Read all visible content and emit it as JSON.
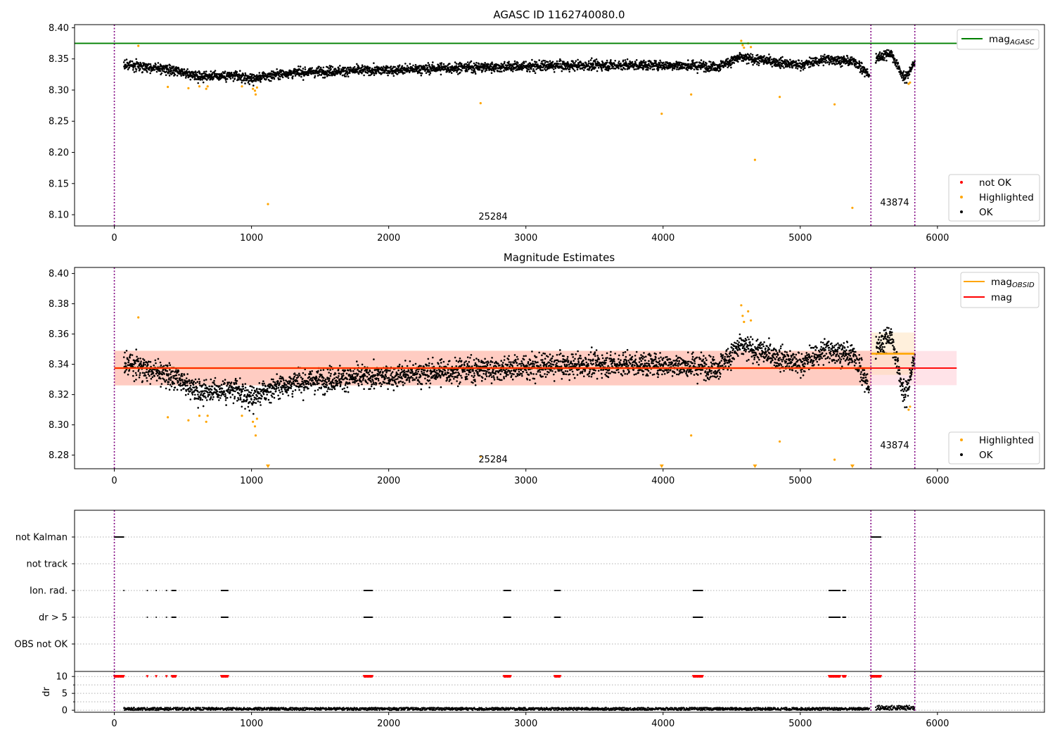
{
  "chart_data": [
    {
      "type": "scatter",
      "title": "AGASC ID 1162740080.0",
      "xlabel": "",
      "ylabel": "",
      "xlim": [
        -290,
        6780
      ],
      "ylim": [
        8.082,
        8.405
      ],
      "xticks": [
        0,
        1000,
        2000,
        3000,
        4000,
        5000,
        6000
      ],
      "xtick_labels": [
        "0",
        "1000",
        "2000",
        "3000",
        "4000",
        "5000",
        "6000"
      ],
      "yticks": [
        8.1,
        8.15,
        8.2,
        8.25,
        8.3,
        8.35,
        8.4
      ],
      "ytick_labels": [
        "8.10",
        "8.15",
        "8.20",
        "8.25",
        "8.30",
        "8.35",
        "8.40"
      ],
      "obsid_boundaries": [
        0,
        5515,
        5835
      ],
      "obsid_labels": [
        {
          "text": "25284",
          "x": 2760,
          "y": 8.091
        },
        {
          "text": "43874",
          "x": 5675,
          "y": 8.12
        }
      ],
      "reference_lines": [
        {
          "name": "mag_AGASC",
          "value": 8.375,
          "x_range": [
            -290,
            6140
          ],
          "color": "#008000"
        }
      ],
      "ok_trend": [
        [
          70,
          8.341
        ],
        [
          300,
          8.336
        ],
        [
          600,
          8.323
        ],
        [
          850,
          8.323
        ],
        [
          1000,
          8.318
        ],
        [
          1200,
          8.326
        ],
        [
          1500,
          8.33
        ],
        [
          2000,
          8.332
        ],
        [
          2500,
          8.336
        ],
        [
          3000,
          8.338
        ],
        [
          3500,
          8.34
        ],
        [
          4000,
          8.34
        ],
        [
          4400,
          8.338
        ],
        [
          4560,
          8.352
        ],
        [
          4800,
          8.346
        ],
        [
          5000,
          8.34
        ],
        [
          5200,
          8.35
        ],
        [
          5400,
          8.345
        ],
        [
          5505,
          8.323
        ],
        [
          5560,
          8.352
        ],
        [
          5660,
          8.36
        ],
        [
          5760,
          8.318
        ],
        [
          5830,
          8.342
        ]
      ],
      "series": [
        {
          "name": "not OK",
          "color": "#ff0000",
          "points": []
        },
        {
          "name": "Highlighted",
          "color": "#ffa500",
          "points": [
            [
              175,
              8.371
            ],
            [
              390,
              8.305
            ],
            [
              540,
              8.303
            ],
            [
              620,
              8.306
            ],
            [
              670,
              8.302
            ],
            [
              680,
              8.306
            ],
            [
              930,
              8.306
            ],
            [
              1010,
              8.302
            ],
            [
              1025,
              8.299
            ],
            [
              1030,
              8.293
            ],
            [
              1040,
              8.304
            ],
            [
              1120,
              8.117
            ],
            [
              2670,
              8.279
            ],
            [
              3990,
              8.262
            ],
            [
              4205,
              8.293
            ],
            [
              4570,
              8.379
            ],
            [
              4580,
              8.372
            ],
            [
              4590,
              8.368
            ],
            [
              4620,
              8.375
            ],
            [
              4640,
              8.369
            ],
            [
              4670,
              8.188
            ],
            [
              4850,
              8.289
            ],
            [
              5250,
              8.277
            ],
            [
              5380,
              8.111
            ],
            [
              5790,
              8.31
            ],
            [
              5800,
              8.312
            ]
          ]
        },
        {
          "name": "OK",
          "color": "#000000",
          "points": []
        }
      ],
      "legends": [
        {
          "position": "top-right",
          "entries": [
            {
              "label": "mag",
              "subscript": "AGASC",
              "color": "#008000",
              "marker": "line"
            }
          ]
        },
        {
          "position": "lower-right",
          "entries": [
            {
              "label": "not OK",
              "color": "#ff0000",
              "marker": "dot"
            },
            {
              "label": "Highlighted",
              "color": "#ffa500",
              "marker": "dot"
            },
            {
              "label": "OK",
              "color": "#000000",
              "marker": "dot"
            }
          ]
        }
      ]
    },
    {
      "type": "scatter",
      "title": "Magnitude Estimates",
      "xlabel": "",
      "ylabel": "",
      "xlim": [
        -290,
        6780
      ],
      "ylim": [
        8.271,
        8.404
      ],
      "xticks": [
        0,
        1000,
        2000,
        3000,
        4000,
        5000,
        6000
      ],
      "xtick_labels": [
        "0",
        "1000",
        "2000",
        "3000",
        "4000",
        "5000",
        "6000"
      ],
      "yticks": [
        8.28,
        8.3,
        8.32,
        8.34,
        8.36,
        8.38,
        8.4
      ],
      "ytick_labels": [
        "8.28",
        "8.30",
        "8.32",
        "8.34",
        "8.36",
        "8.38",
        "8.40"
      ],
      "obsid_boundaries": [
        0,
        5515,
        5835
      ],
      "obsid_labels": [
        {
          "text": "25284",
          "x": 2760,
          "y": 8.277
        },
        {
          "text": "43874",
          "x": 5675,
          "y": 8.286
        }
      ],
      "reference_lines": [
        {
          "name": "mag",
          "value": 8.3375,
          "x_range": [
            0,
            6140
          ],
          "color": "#ff0000"
        },
        {
          "name": "mag_OBSID",
          "value": 8.3375,
          "x_range": [
            0,
            5515
          ],
          "color": "#ffa500"
        },
        {
          "name": "mag_OBSID",
          "value": 8.347,
          "x_range": [
            5515,
            5835
          ],
          "color": "#ffa500"
        }
      ],
      "bands": [
        {
          "x_range": [
            0,
            6140
          ],
          "y_range": [
            8.3262,
            8.3488
          ],
          "color": "#ffc0cb",
          "opacity": 0.45
        },
        {
          "x_range": [
            0,
            5515
          ],
          "y_range": [
            8.326,
            8.349
          ],
          "color": "#ffa07a",
          "opacity": 0.35
        },
        {
          "x_range": [
            5515,
            5835
          ],
          "y_range": [
            8.333,
            8.361
          ],
          "color": "#ffd59a",
          "opacity": 0.35
        }
      ],
      "out_of_range_markers": [
        1120,
        3990,
        4670,
        5380
      ],
      "ok_trend": [
        [
          70,
          8.341
        ],
        [
          300,
          8.336
        ],
        [
          600,
          8.323
        ],
        [
          850,
          8.323
        ],
        [
          1000,
          8.318
        ],
        [
          1200,
          8.326
        ],
        [
          1500,
          8.33
        ],
        [
          2000,
          8.332
        ],
        [
          2500,
          8.336
        ],
        [
          3000,
          8.338
        ],
        [
          3500,
          8.34
        ],
        [
          4000,
          8.34
        ],
        [
          4400,
          8.338
        ],
        [
          4560,
          8.352
        ],
        [
          4800,
          8.346
        ],
        [
          5000,
          8.34
        ],
        [
          5200,
          8.35
        ],
        [
          5400,
          8.345
        ],
        [
          5505,
          8.323
        ],
        [
          5560,
          8.352
        ],
        [
          5660,
          8.36
        ],
        [
          5760,
          8.318
        ],
        [
          5830,
          8.342
        ]
      ],
      "series": [
        {
          "name": "Highlighted",
          "color": "#ffa500",
          "points": [
            [
              175,
              8.371
            ],
            [
              390,
              8.305
            ],
            [
              540,
              8.303
            ],
            [
              620,
              8.306
            ],
            [
              670,
              8.302
            ],
            [
              680,
              8.306
            ],
            [
              930,
              8.306
            ],
            [
              1010,
              8.302
            ],
            [
              1025,
              8.299
            ],
            [
              1030,
              8.293
            ],
            [
              1040,
              8.304
            ],
            [
              2670,
              8.279
            ],
            [
              4205,
              8.293
            ],
            [
              4570,
              8.379
            ],
            [
              4580,
              8.372
            ],
            [
              4590,
              8.368
            ],
            [
              4620,
              8.375
            ],
            [
              4640,
              8.369
            ],
            [
              4850,
              8.289
            ],
            [
              5250,
              8.277
            ],
            [
              5790,
              8.31
            ],
            [
              5800,
              8.312
            ]
          ]
        },
        {
          "name": "OK",
          "color": "#000000",
          "points": []
        }
      ],
      "legends": [
        {
          "position": "top-right",
          "entries": [
            {
              "label": "mag",
              "subscript": "OBSID",
              "color": "#ffa500",
              "marker": "line"
            },
            {
              "label": "mag",
              "subscript": "",
              "color": "#ff0000",
              "marker": "line"
            }
          ]
        },
        {
          "position": "lower-right",
          "entries": [
            {
              "label": "Highlighted",
              "color": "#ffa500",
              "marker": "dot"
            },
            {
              "label": "OK",
              "color": "#000000",
              "marker": "dot"
            }
          ]
        }
      ]
    },
    {
      "type": "scatter",
      "title": "",
      "xlabel": "",
      "ylabel": "",
      "xlim": [
        -290,
        6780
      ],
      "categories": [
        "not Kalman",
        "not track",
        "Ion. rad.",
        "dr > 5",
        "OBS not OK"
      ],
      "obsid_boundaries": [
        0,
        5515,
        5835
      ],
      "flags": {
        "not Kalman": [
          [
            0,
            70
          ],
          [
            5515,
            5590
          ]
        ],
        "not track": [],
        "Ion. rad.": [
          [
            70,
            72
          ],
          [
            240,
            242
          ],
          [
            305,
            307
          ],
          [
            380,
            382
          ],
          [
            420,
            450
          ],
          [
            780,
            830
          ],
          [
            1820,
            1880
          ],
          [
            2840,
            2890
          ],
          [
            3210,
            3250
          ],
          [
            4220,
            4290
          ],
          [
            5210,
            5290
          ],
          [
            5310,
            5330
          ]
        ],
        "dr > 5": [
          [
            240,
            242
          ],
          [
            305,
            307
          ],
          [
            380,
            382
          ],
          [
            420,
            450
          ],
          [
            780,
            830
          ],
          [
            1820,
            1880
          ],
          [
            2840,
            2890
          ],
          [
            3210,
            3250
          ],
          [
            4220,
            4290
          ],
          [
            5210,
            5290
          ],
          [
            5310,
            5330
          ]
        ],
        "OBS not OK": []
      }
    },
    {
      "type": "scatter",
      "title": "",
      "xlabel": "",
      "ylabel": "dr",
      "xlim": [
        -290,
        6780
      ],
      "ylim": [
        -0.6,
        11.5
      ],
      "xticks": [
        0,
        1000,
        2000,
        3000,
        4000,
        5000,
        6000
      ],
      "xtick_labels": [
        "0",
        "1000",
        "2000",
        "3000",
        "4000",
        "5000",
        "6000"
      ],
      "yticks": [
        0,
        5,
        10
      ],
      "ytick_labels": [
        "0",
        "5",
        "10"
      ],
      "obsid_boundaries": [
        0,
        5515,
        5835
      ],
      "baseline": {
        "x_range": [
          70,
          5835
        ],
        "y_range": [
          0.0,
          0.8
        ],
        "color": "#000000"
      },
      "clipped_points": {
        "value": 10,
        "color": "#ff0000",
        "x_ranges": [
          [
            0,
            70
          ],
          [
            240,
            242
          ],
          [
            305,
            307
          ],
          [
            380,
            382
          ],
          [
            420,
            450
          ],
          [
            780,
            830
          ],
          [
            1820,
            1880
          ],
          [
            2840,
            2890
          ],
          [
            3210,
            3250
          ],
          [
            4220,
            4290
          ],
          [
            5210,
            5290
          ],
          [
            5310,
            5330
          ],
          [
            5515,
            5590
          ]
        ]
      }
    }
  ]
}
